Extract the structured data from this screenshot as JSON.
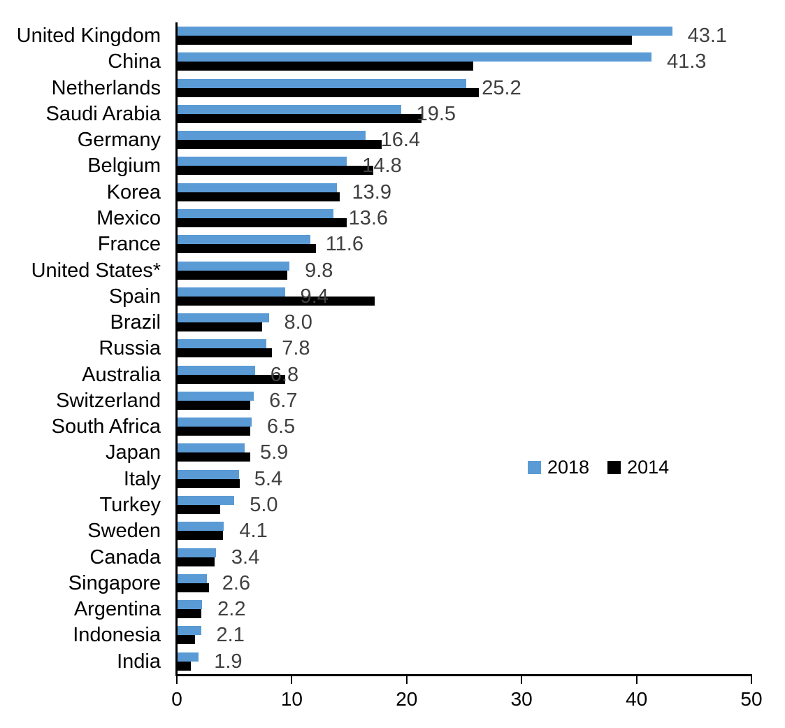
{
  "chart_data": {
    "type": "bar",
    "orientation": "horizontal",
    "categories": [
      "United Kingdom",
      "China",
      "Netherlands",
      "Saudi Arabia",
      "Germany",
      "Belgium",
      "Korea",
      "Mexico",
      "France",
      "United States*",
      "Spain",
      "Brazil",
      "Russia",
      "Australia",
      "Switzerland",
      "South Africa",
      "Japan",
      "Italy",
      "Turkey",
      "Sweden",
      "Canada",
      "Singapore",
      "Argentina",
      "Indonesia",
      "India"
    ],
    "series": [
      {
        "name": "2018",
        "color": "#5B9BD5",
        "values": [
          43.1,
          41.3,
          25.2,
          19.5,
          16.4,
          14.8,
          13.9,
          13.6,
          11.6,
          9.8,
          9.4,
          8.0,
          7.8,
          6.8,
          6.7,
          6.5,
          5.9,
          5.4,
          5.0,
          4.1,
          3.4,
          2.6,
          2.2,
          2.1,
          1.9
        ],
        "data_labels": [
          "43.1",
          "41.3",
          "25.2",
          "19.5",
          "16.4",
          "14.8",
          "13.9",
          "13.6",
          "11.6",
          "9.8",
          "9.4",
          "8.0",
          "7.8",
          "6.8",
          "6.7",
          "6.5",
          "5.9",
          "5.4",
          "5.0",
          "4.1",
          "3.4",
          "2.6",
          "2.2",
          "2.1",
          "1.9"
        ]
      },
      {
        "name": "2014",
        "color": "#000000",
        "values": [
          39.6,
          25.8,
          26.3,
          21.3,
          17.8,
          17.1,
          14.2,
          14.8,
          12.1,
          9.6,
          17.2,
          7.4,
          8.3,
          9.4,
          6.4,
          6.4,
          6.4,
          5.5,
          3.8,
          4.0,
          3.3,
          2.8,
          2.1,
          1.6,
          1.2
        ]
      }
    ],
    "xlim": [
      0,
      50
    ],
    "x_ticks": [
      "0",
      "10",
      "20",
      "30",
      "40",
      "50"
    ],
    "legend": {
      "position": "middle-right",
      "entries": [
        {
          "label": "2018",
          "color": "#5B9BD5"
        },
        {
          "label": "2014",
          "color": "#000000"
        }
      ]
    },
    "grid": false,
    "value_label_color": "#404040",
    "axis_color": "#000000"
  }
}
